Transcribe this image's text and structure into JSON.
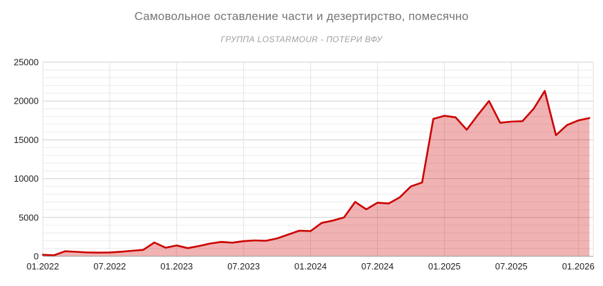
{
  "header": {
    "title": "Самовольное оставление части и дезертирство, помесячно",
    "subtitle": "ГРУППА LOSTARMOUR - ПОТЕРИ ВФУ"
  },
  "chart_data": {
    "type": "area",
    "title": "Самовольное оставление части и дезертирство, помесячно",
    "subtitle": "ГРУППА LOSTARMOUR - ПОТЕРИ ВФУ",
    "xlabel": "",
    "ylabel": "",
    "ylim": [
      0,
      25000
    ],
    "y_ticks": [
      0,
      5000,
      10000,
      15000,
      20000,
      25000
    ],
    "y_minor_step": 1000,
    "x_tick_labels": [
      "01.2022",
      "07.2022",
      "01.2023",
      "07.2023",
      "01.2024",
      "07.2024",
      "01.2025",
      "07.2025",
      "01.2026"
    ],
    "x_tick_month_indices": [
      0,
      6,
      12,
      18,
      24,
      30,
      36,
      42,
      48
    ],
    "grid": "on",
    "legend_position": "none",
    "line_color": "#cc0000",
    "fill_color": "rgba(204,0,0,0.30)",
    "major_grid_color": "#cfcfcf",
    "minor_grid_color": "#ececec",
    "vertical_grid_color": "#e2e2e2",
    "axis_line_color": "#9e9e9e",
    "categories": [
      "01.2022",
      "02.2022",
      "03.2022",
      "04.2022",
      "05.2022",
      "06.2022",
      "07.2022",
      "08.2022",
      "09.2022",
      "10.2022",
      "11.2022",
      "12.2022",
      "01.2023",
      "02.2023",
      "03.2023",
      "04.2023",
      "05.2023",
      "06.2023",
      "07.2023",
      "08.2023",
      "09.2023",
      "10.2023",
      "11.2023",
      "12.2023",
      "01.2024",
      "02.2024",
      "03.2024",
      "04.2024",
      "05.2024",
      "06.2024",
      "07.2024",
      "08.2024",
      "09.2024",
      "10.2024",
      "11.2024",
      "12.2024",
      "01.2025",
      "02.2025",
      "03.2025",
      "04.2025",
      "05.2025",
      "06.2025",
      "07.2025",
      "08.2025",
      "09.2025",
      "10.2025",
      "11.2025",
      "12.2025",
      "01.2026",
      "02.2026"
    ],
    "values": [
      200,
      130,
      650,
      580,
      500,
      470,
      500,
      590,
      710,
      830,
      1780,
      1100,
      1400,
      1050,
      1330,
      1650,
      1850,
      1750,
      1950,
      2050,
      2000,
      2300,
      2800,
      3300,
      3250,
      4300,
      4600,
      5000,
      7000,
      6050,
      6900,
      6800,
      7600,
      9000,
      9500,
      17700,
      18100,
      17900,
      16300,
      18200,
      20000,
      17200,
      17350,
      17400,
      19000,
      21300,
      15600,
      16900,
      17500,
      17800
    ]
  }
}
